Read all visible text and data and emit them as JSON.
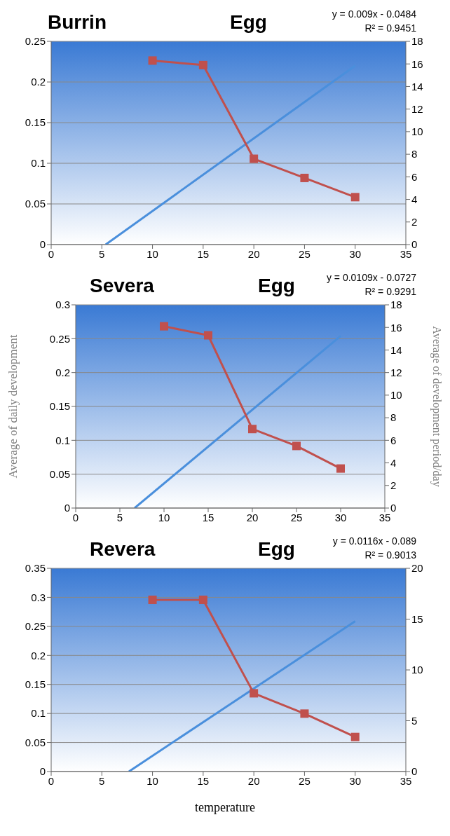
{
  "chart_data": [
    {
      "type": "line",
      "title": "Burrin",
      "subtitle": "Egg",
      "annotations": [
        "y = 0.009x - 0.0484",
        "R² = 0.9451"
      ],
      "xlim": [
        0,
        35
      ],
      "xticks": [
        0,
        5,
        10,
        15,
        20,
        25,
        30,
        35
      ],
      "ylim": [
        0,
        0.25
      ],
      "yticks": [
        0,
        0.05,
        0.1,
        0.15,
        0.2,
        0.25
      ],
      "y2lim": [
        0,
        18
      ],
      "y2ticks": [
        0,
        2,
        4,
        6,
        8,
        10,
        12,
        14,
        16,
        18
      ],
      "grid": "y",
      "series": [
        {
          "color": "#4a8fdc",
          "marker": "none",
          "x": [
            5.38,
            30
          ],
          "values": [
            0,
            0.22
          ]
        },
        {
          "color": "#c0504d",
          "marker": "square",
          "axis": "y2",
          "x": [
            10,
            15,
            20,
            25,
            30
          ],
          "values": [
            16.3,
            15.9,
            7.6,
            5.9,
            4.2
          ]
        }
      ]
    },
    {
      "type": "line",
      "title": "Severa",
      "subtitle": "Egg",
      "annotations": [
        "y = 0.0109x - 0.0727",
        "R² = 0.9291"
      ],
      "ylabel": "Average of daily development",
      "y2label": "Average  of development period/day",
      "xlim": [
        0,
        35
      ],
      "xticks": [
        0,
        5,
        10,
        15,
        20,
        25,
        30,
        35
      ],
      "ylim": [
        0,
        0.3
      ],
      "yticks": [
        0,
        0.05,
        0.1,
        0.15,
        0.2,
        0.25,
        0.3
      ],
      "y2lim": [
        0,
        18
      ],
      "y2ticks": [
        0,
        2,
        4,
        6,
        8,
        10,
        12,
        14,
        16,
        18
      ],
      "grid": "y",
      "series": [
        {
          "color": "#4a8fdc",
          "marker": "none",
          "x": [
            6.67,
            30
          ],
          "values": [
            0,
            0.254
          ]
        },
        {
          "color": "#c0504d",
          "marker": "square",
          "axis": "y2",
          "x": [
            10,
            15,
            20,
            25,
            30
          ],
          "values": [
            16.1,
            15.3,
            7.0,
            5.5,
            3.5
          ]
        }
      ]
    },
    {
      "type": "line",
      "title": "Revera",
      "subtitle": "Egg",
      "annotations": [
        "y = 0.0116x - 0.089",
        "R² = 0.9013"
      ],
      "xlabel": "temperature",
      "xlim": [
        0,
        35
      ],
      "xticks": [
        0,
        5,
        10,
        15,
        20,
        25,
        30,
        35
      ],
      "ylim": [
        0,
        0.35
      ],
      "yticks": [
        0,
        0.05,
        0.1,
        0.15,
        0.2,
        0.25,
        0.3,
        0.35
      ],
      "y2lim": [
        0,
        20
      ],
      "y2ticks": [
        0,
        5,
        10,
        15,
        20
      ],
      "grid": "y",
      "series": [
        {
          "color": "#4a8fdc",
          "marker": "none",
          "x": [
            7.67,
            30
          ],
          "values": [
            0,
            0.259
          ]
        },
        {
          "color": "#c0504d",
          "marker": "square",
          "axis": "y2",
          "x": [
            10,
            15,
            20,
            25,
            30
          ],
          "values": [
            16.9,
            16.9,
            7.7,
            5.7,
            3.4
          ]
        }
      ]
    }
  ]
}
